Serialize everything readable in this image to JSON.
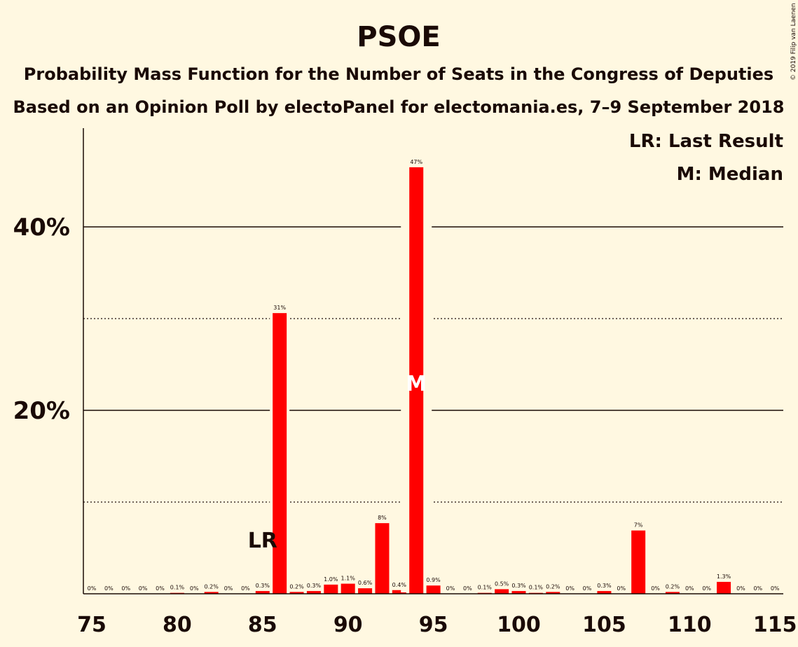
{
  "chart_data": {
    "type": "bar",
    "title": "PSOE",
    "subtitle_1": "Probability Mass Function for the Number of Seats in the Congress of Deputies",
    "subtitle_2": "Based on an Opinion Poll by electoPanel for electomania.es, 7–9 September 2018",
    "copyright": "© 2019 Filip van Laenen",
    "legend": [
      "LR: Last Result",
      "M: Median"
    ],
    "x_ticks": [
      "75",
      "80",
      "85",
      "90",
      "95",
      "100",
      "105",
      "110",
      "115"
    ],
    "y_ticks": [
      "20%",
      "40%"
    ],
    "ylim": [
      0,
      50
    ],
    "xlim": [
      75,
      115
    ],
    "bar_color": "#ff0000",
    "categories": [
      75,
      76,
      77,
      78,
      79,
      80,
      81,
      82,
      83,
      84,
      85,
      86,
      87,
      88,
      89,
      90,
      91,
      92,
      93,
      94,
      95,
      96,
      97,
      98,
      99,
      100,
      101,
      102,
      103,
      104,
      105,
      106,
      107,
      108,
      109,
      110,
      111,
      112,
      113,
      114,
      115
    ],
    "values": [
      0,
      0,
      0,
      0,
      0,
      0.1,
      0,
      0.2,
      0,
      0,
      0.3,
      30.6,
      0.2,
      0.3,
      1.0,
      1.1,
      0.6,
      7.7,
      0.4,
      46.5,
      0.9,
      0,
      0,
      0.1,
      0.5,
      0.3,
      0.1,
      0.2,
      0,
      0,
      0.3,
      0,
      6.9,
      0,
      0.2,
      0,
      0,
      1.3,
      0,
      0,
      0
    ],
    "labels": [
      "0%",
      "0%",
      "0%",
      "0%",
      "0%",
      "0.1%",
      "0%",
      "0.2%",
      "0%",
      "0%",
      "0.3%",
      "31%",
      "0.2%",
      "0.3%",
      "1.0%",
      "1.1%",
      "0.6%",
      "8%",
      "0.4%",
      "47%",
      "0.9%",
      "0%",
      "0%",
      "0.1%",
      "0.5%",
      "0.3%",
      "0.1%",
      "0.2%",
      "0%",
      "0%",
      "0.3%",
      "0%",
      "7%",
      "0%",
      "0.2%",
      "0%",
      "0%",
      "1.3%",
      "0%",
      "0%",
      "0%"
    ],
    "last_result": {
      "seats": 85,
      "label": "LR"
    },
    "median": {
      "seats": 94,
      "label": "M"
    }
  }
}
